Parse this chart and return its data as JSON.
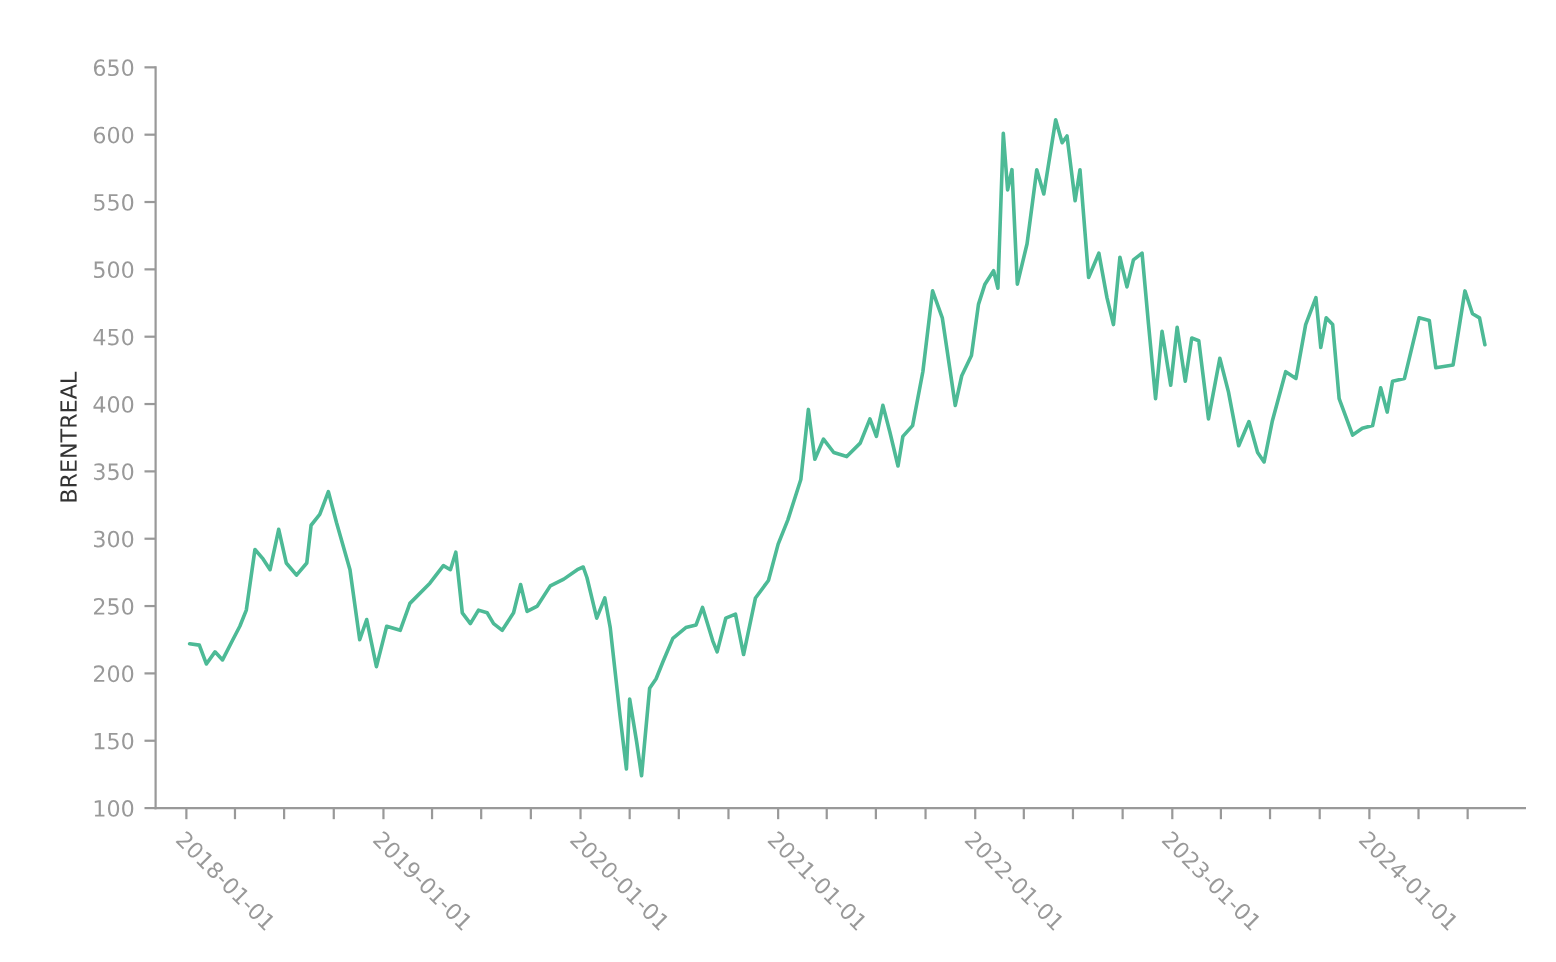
{
  "chart_data": {
    "type": "line",
    "ylabel": "BRENTREAL",
    "ylim": [
      100,
      650
    ],
    "yticks": [
      100,
      150,
      200,
      250,
      300,
      350,
      400,
      450,
      500,
      550,
      600,
      650
    ],
    "xlim": [
      "2017-11-05",
      "2024-10-15"
    ],
    "xticks": [
      {
        "value": "2018-01-01",
        "label": "2018-01-01"
      },
      {
        "value": "2018-04-01",
        "label": null
      },
      {
        "value": "2018-07-01",
        "label": null
      },
      {
        "value": "2018-10-01",
        "label": null
      },
      {
        "value": "2019-01-01",
        "label": "2019-01-01"
      },
      {
        "value": "2019-04-01",
        "label": null
      },
      {
        "value": "2019-07-01",
        "label": null
      },
      {
        "value": "2019-10-01",
        "label": null
      },
      {
        "value": "2020-01-01",
        "label": "2020-01-01"
      },
      {
        "value": "2020-04-01",
        "label": null
      },
      {
        "value": "2020-07-01",
        "label": null
      },
      {
        "value": "2020-10-01",
        "label": null
      },
      {
        "value": "2021-01-01",
        "label": "2021-01-01"
      },
      {
        "value": "2021-04-01",
        "label": null
      },
      {
        "value": "2021-07-01",
        "label": null
      },
      {
        "value": "2021-10-01",
        "label": null
      },
      {
        "value": "2022-01-01",
        "label": "2022-01-01"
      },
      {
        "value": "2022-04-01",
        "label": null
      },
      {
        "value": "2022-07-01",
        "label": null
      },
      {
        "value": "2022-10-01",
        "label": null
      },
      {
        "value": "2023-01-01",
        "label": "2023-01-01"
      },
      {
        "value": "2023-04-01",
        "label": null
      },
      {
        "value": "2023-07-01",
        "label": null
      },
      {
        "value": "2023-10-01",
        "label": null
      },
      {
        "value": "2024-01-01",
        "label": "2024-01-01"
      },
      {
        "value": "2024-04-01",
        "label": null
      },
      {
        "value": "2024-07-01",
        "label": null
      }
    ],
    "grid": false,
    "legend": false,
    "marker": "none",
    "line_style": "solid",
    "series": [
      {
        "color": "#4dba96",
        "x": [
          "2018-01-07",
          "2018-01-25",
          "2018-02-07",
          "2018-02-23",
          "2018-03-09",
          "2018-03-28",
          "2018-04-10",
          "2018-04-22",
          "2018-05-08",
          "2018-05-23",
          "2018-06-05",
          "2018-06-21",
          "2018-07-05",
          "2018-07-24",
          "2018-08-12",
          "2018-08-20",
          "2018-09-05",
          "2018-09-21",
          "2018-10-06",
          "2018-10-31",
          "2018-11-18",
          "2018-12-01",
          "2018-12-19",
          "2019-01-07",
          "2019-02-01",
          "2019-02-19",
          "2019-03-28",
          "2019-04-22",
          "2019-05-05",
          "2019-05-15",
          "2019-05-27",
          "2019-06-11",
          "2019-06-26",
          "2019-07-12",
          "2019-07-24",
          "2019-08-09",
          "2019-08-30",
          "2019-09-12",
          "2019-09-24",
          "2019-10-13",
          "2019-11-06",
          "2019-12-01",
          "2019-12-26",
          "2020-01-06",
          "2020-01-13",
          "2020-01-31",
          "2020-02-15",
          "2020-02-25",
          "2020-03-14",
          "2020-03-26",
          "2020-04-01",
          "2020-04-14",
          "2020-04-23",
          "2020-05-08",
          "2020-05-20",
          "2020-06-02",
          "2020-06-20",
          "2020-07-14",
          "2020-08-02",
          "2020-08-14",
          "2020-09-02",
          "2020-09-10",
          "2020-09-26",
          "2020-10-14",
          "2020-10-29",
          "2020-11-20",
          "2020-12-14",
          "2021-01-01",
          "2021-01-19",
          "2021-02-12",
          "2021-02-26",
          "2021-03-10",
          "2021-03-26",
          "2021-04-14",
          "2021-05-08",
          "2021-06-02",
          "2021-06-20",
          "2021-07-02",
          "2021-07-14",
          "2021-07-27",
          "2021-08-11",
          "2021-08-20",
          "2021-09-07",
          "2021-09-26",
          "2021-10-14",
          "2021-11-01",
          "2021-11-25",
          "2021-12-07",
          "2021-12-25",
          "2022-01-07",
          "2022-01-19",
          "2022-02-04",
          "2022-02-12",
          "2022-02-22",
          "2022-03-02",
          "2022-03-10",
          "2022-03-20",
          "2022-04-07",
          "2022-04-25",
          "2022-05-08",
          "2022-05-30",
          "2022-06-11",
          "2022-06-20",
          "2022-07-05",
          "2022-07-14",
          "2022-07-30",
          "2022-08-18",
          "2022-09-02",
          "2022-09-14",
          "2022-09-26",
          "2022-10-09",
          "2022-10-21",
          "2022-11-06",
          "2022-11-18",
          "2022-12-01",
          "2022-12-13",
          "2022-12-29",
          "2023-01-10",
          "2023-01-25",
          "2023-02-06",
          "2023-02-19",
          "2023-03-09",
          "2023-03-30",
          "2023-04-15",
          "2023-05-04",
          "2023-05-23",
          "2023-06-08",
          "2023-06-20",
          "2023-07-05",
          "2023-07-30",
          "2023-08-18",
          "2023-09-05",
          "2023-09-24",
          "2023-10-03",
          "2023-10-13",
          "2023-10-25",
          "2023-11-06",
          "2023-12-01",
          "2023-12-19",
          "2024-01-07",
          "2024-01-22",
          "2024-02-03",
          "2024-02-13",
          "2024-03-06",
          "2024-04-02",
          "2024-04-21",
          "2024-05-03",
          "2024-06-04",
          "2024-06-26",
          "2024-07-10",
          "2024-07-23",
          "2024-08-02"
        ],
        "values": [
          222,
          221,
          207,
          216,
          210,
          225,
          235,
          247,
          292,
          285,
          277,
          307,
          282,
          273,
          282,
          310,
          318,
          335,
          312,
          277,
          225,
          240,
          205,
          235,
          232,
          252,
          267,
          280,
          277,
          290,
          245,
          237,
          247,
          245,
          237,
          232,
          245,
          266,
          246,
          250,
          265,
          270,
          277,
          279,
          271,
          241,
          256,
          234,
          169,
          129,
          181,
          149,
          124,
          189,
          196,
          209,
          226,
          234,
          236,
          249,
          224,
          216,
          241,
          244,
          214,
          256,
          269,
          296,
          314,
          344,
          396,
          359,
          374,
          364,
          361,
          371,
          389,
          376,
          399,
          379,
          354,
          376,
          384,
          424,
          484,
          464,
          399,
          421,
          436,
          474,
          489,
          499,
          486,
          601,
          559,
          574,
          489,
          519,
          574,
          556,
          611,
          594,
          599,
          551,
          574,
          494,
          512,
          479,
          459,
          509,
          487,
          507,
          512,
          459,
          404,
          454,
          414,
          457,
          417,
          449,
          447,
          389,
          434,
          409,
          369,
          387,
          364,
          357,
          387,
          424,
          419,
          459,
          479,
          442,
          464,
          459,
          404,
          377,
          382,
          384,
          412,
          394,
          417,
          419,
          464,
          462,
          427,
          429,
          484,
          467,
          464,
          444
        ]
      }
    ]
  }
}
